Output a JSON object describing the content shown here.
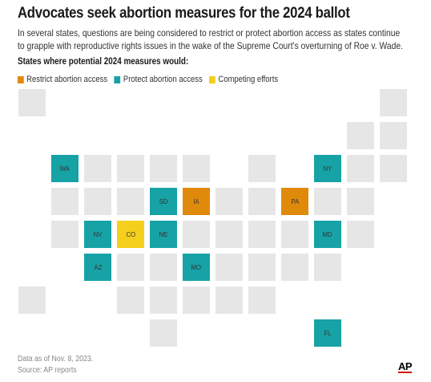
{
  "header": {
    "title": "Advocates seek abortion measures for the 2024 ballot",
    "subtitle": "In several states, questions are being considered to restrict or protect abortion access as states continue to grapple with reproductive rights issues in the wake of the Supreme Court's overturning of Roe v. Wade.",
    "section_label": "States where potential 2024 measures would:"
  },
  "legend": [
    {
      "key": "restrict",
      "label": "Restrict abortion access",
      "color": "#e08a0c"
    },
    {
      "key": "protect",
      "label": "Protect abortion access",
      "color": "#17a2a5"
    },
    {
      "key": "competing",
      "label": "Competing efforts",
      "color": "#f4cf1c"
    }
  ],
  "colors": {
    "none": "#e6e6e6",
    "restrict": "#e08a0c",
    "protect": "#17a2a5",
    "competing": "#f4cf1c"
  },
  "chart_data": {
    "type": "tile grid map",
    "highlighted_states": [
      {
        "state": "WA",
        "category": "protect"
      },
      {
        "state": "NY",
        "category": "protect"
      },
      {
        "state": "SD",
        "category": "protect"
      },
      {
        "state": "IA",
        "category": "restrict"
      },
      {
        "state": "PA",
        "category": "restrict"
      },
      {
        "state": "NV",
        "category": "protect"
      },
      {
        "state": "CO",
        "category": "competing"
      },
      {
        "state": "NE",
        "category": "protect"
      },
      {
        "state": "MD",
        "category": "protect"
      },
      {
        "state": "AZ",
        "category": "protect"
      },
      {
        "state": "MO",
        "category": "protect"
      },
      {
        "state": "FL",
        "category": "protect"
      }
    ],
    "tiles": [
      {
        "row": 0,
        "col": 0,
        "label": "",
        "category": "none"
      },
      {
        "row": 0,
        "col": 11,
        "label": "",
        "category": "none"
      },
      {
        "row": 1,
        "col": 10,
        "label": "",
        "category": "none"
      },
      {
        "row": 1,
        "col": 11,
        "label": "",
        "category": "none"
      },
      {
        "row": 2,
        "col": 1,
        "label": "WA",
        "category": "protect"
      },
      {
        "row": 2,
        "col": 2,
        "label": "",
        "category": "none"
      },
      {
        "row": 2,
        "col": 3,
        "label": "",
        "category": "none"
      },
      {
        "row": 2,
        "col": 4,
        "label": "",
        "category": "none"
      },
      {
        "row": 2,
        "col": 5,
        "label": "",
        "category": "none"
      },
      {
        "row": 2,
        "col": 7,
        "label": "",
        "category": "none"
      },
      {
        "row": 2,
        "col": 9,
        "label": "NY",
        "category": "protect"
      },
      {
        "row": 2,
        "col": 10,
        "label": "",
        "category": "none"
      },
      {
        "row": 2,
        "col": 11,
        "label": "",
        "category": "none"
      },
      {
        "row": 3,
        "col": 1,
        "label": "",
        "category": "none"
      },
      {
        "row": 3,
        "col": 2,
        "label": "",
        "category": "none"
      },
      {
        "row": 3,
        "col": 3,
        "label": "",
        "category": "none"
      },
      {
        "row": 3,
        "col": 4,
        "label": "SD",
        "category": "protect"
      },
      {
        "row": 3,
        "col": 5,
        "label": "IA",
        "category": "restrict"
      },
      {
        "row": 3,
        "col": 6,
        "label": "",
        "category": "none"
      },
      {
        "row": 3,
        "col": 7,
        "label": "",
        "category": "none"
      },
      {
        "row": 3,
        "col": 8,
        "label": "PA",
        "category": "restrict"
      },
      {
        "row": 3,
        "col": 9,
        "label": "",
        "category": "none"
      },
      {
        "row": 3,
        "col": 10,
        "label": "",
        "category": "none"
      },
      {
        "row": 4,
        "col": 1,
        "label": "",
        "category": "none"
      },
      {
        "row": 4,
        "col": 2,
        "label": "NV",
        "category": "protect"
      },
      {
        "row": 4,
        "col": 3,
        "label": "CO",
        "category": "competing"
      },
      {
        "row": 4,
        "col": 4,
        "label": "NE",
        "category": "protect"
      },
      {
        "row": 4,
        "col": 5,
        "label": "",
        "category": "none"
      },
      {
        "row": 4,
        "col": 6,
        "label": "",
        "category": "none"
      },
      {
        "row": 4,
        "col": 7,
        "label": "",
        "category": "none"
      },
      {
        "row": 4,
        "col": 8,
        "label": "",
        "category": "none"
      },
      {
        "row": 4,
        "col": 9,
        "label": "MD",
        "category": "protect"
      },
      {
        "row": 4,
        "col": 10,
        "label": "",
        "category": "none"
      },
      {
        "row": 5,
        "col": 2,
        "label": "AZ",
        "category": "protect"
      },
      {
        "row": 5,
        "col": 3,
        "label": "",
        "category": "none"
      },
      {
        "row": 5,
        "col": 4,
        "label": "",
        "category": "none"
      },
      {
        "row": 5,
        "col": 5,
        "label": "MO",
        "category": "protect"
      },
      {
        "row": 5,
        "col": 6,
        "label": "",
        "category": "none"
      },
      {
        "row": 5,
        "col": 7,
        "label": "",
        "category": "none"
      },
      {
        "row": 5,
        "col": 8,
        "label": "",
        "category": "none"
      },
      {
        "row": 5,
        "col": 9,
        "label": "",
        "category": "none"
      },
      {
        "row": 6,
        "col": 0,
        "label": "",
        "category": "none"
      },
      {
        "row": 6,
        "col": 3,
        "label": "",
        "category": "none"
      },
      {
        "row": 6,
        "col": 4,
        "label": "",
        "category": "none"
      },
      {
        "row": 6,
        "col": 5,
        "label": "",
        "category": "none"
      },
      {
        "row": 6,
        "col": 6,
        "label": "",
        "category": "none"
      },
      {
        "row": 6,
        "col": 7,
        "label": "",
        "category": "none"
      },
      {
        "row": 7,
        "col": 4,
        "label": "",
        "category": "none"
      },
      {
        "row": 7,
        "col": 9,
        "label": "FL",
        "category": "protect"
      }
    ]
  },
  "footer": {
    "date_note": "Data as of Nov. 8, 2023.",
    "source": "Source: AP reports",
    "logo": "AP"
  }
}
